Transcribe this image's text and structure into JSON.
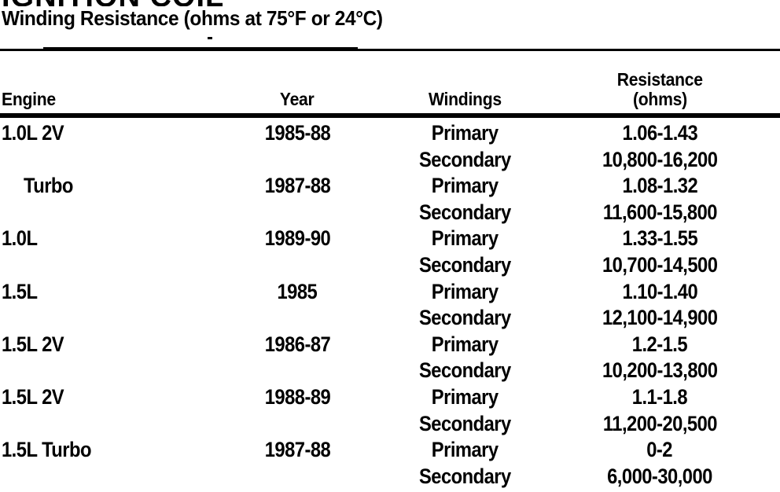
{
  "page": {
    "background": "#ffffff",
    "ink": "#000000"
  },
  "heading_clipped": "IGNITION COIL",
  "subtitle": "Winding Resistance (ohms at 75°F or 24°C)",
  "table": {
    "columns": [
      "Engine",
      "Year",
      "Windings",
      "Resistance (ohms)"
    ],
    "header": {
      "engine": "Engine",
      "year": "Year",
      "windings": "Windings",
      "resistance_line1": "Resistance",
      "resistance_line2": "(ohms)"
    },
    "rows": [
      {
        "engine": "1.0L 2V",
        "indent": false,
        "year": "1985-88",
        "winding": "Primary",
        "resistance": "1.06-1.43"
      },
      {
        "engine": "",
        "indent": false,
        "year": "",
        "winding": "Secondary",
        "resistance": "10,800-16,200"
      },
      {
        "engine": "Turbo",
        "indent": true,
        "year": "1987-88",
        "winding": "Primary",
        "resistance": "1.08-1.32"
      },
      {
        "engine": "",
        "indent": false,
        "year": "",
        "winding": "Secondary",
        "resistance": "11,600-15,800"
      },
      {
        "engine": "1.0L",
        "indent": false,
        "year": "1989-90",
        "winding": "Primary",
        "resistance": "1.33-1.55"
      },
      {
        "engine": "",
        "indent": false,
        "year": "",
        "winding": "Secondary",
        "resistance": "10,700-14,500"
      },
      {
        "engine": "1.5L",
        "indent": false,
        "year": "1985",
        "winding": "Primary",
        "resistance": "1.10-1.40"
      },
      {
        "engine": "",
        "indent": false,
        "year": "",
        "winding": "Secondary",
        "resistance": "12,100-14,900"
      },
      {
        "engine": "1.5L 2V",
        "indent": false,
        "year": "1986-87",
        "winding": "Primary",
        "resistance": "1.2-1.5"
      },
      {
        "engine": "",
        "indent": false,
        "year": "",
        "winding": "Secondary",
        "resistance": "10,200-13,800"
      },
      {
        "engine": "1.5L 2V",
        "indent": false,
        "year": "1988-89",
        "winding": "Primary",
        "resistance": "1.1-1.8"
      },
      {
        "engine": "",
        "indent": false,
        "year": "",
        "winding": "Secondary",
        "resistance": "11,200-20,500"
      },
      {
        "engine": "1.5L Turbo",
        "indent": false,
        "year": "1987-88",
        "winding": "Primary",
        "resistance": "0-2"
      },
      {
        "engine": "",
        "indent": false,
        "year": "",
        "winding": "Secondary",
        "resistance": "6,000-30,000"
      }
    ]
  }
}
